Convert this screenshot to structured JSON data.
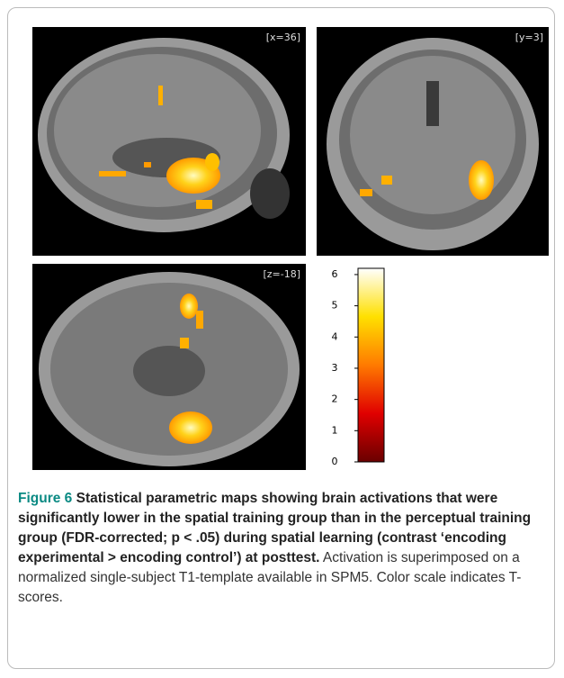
{
  "panels": [
    {
      "label": "[x=36]"
    },
    {
      "label": "[y=3]"
    },
    {
      "label": "[z=-18]"
    }
  ],
  "colorbar": {
    "ylim": [
      0,
      6.2
    ],
    "yticks": [
      0,
      1,
      2,
      3,
      4,
      5,
      6
    ]
  },
  "caption": {
    "figure_label": "Figure 6",
    "title": "Statistical parametric maps showing brain activations that were significantly lower in the spatial training group than in the perceptual training group (FDR-corrected; p < .05) during spatial learning (contrast ‘encoding experimental > encoding control’) at posttest.",
    "text": "Activation is superimposed on a normalized single-subject T1-template available in SPM5. Color scale indicates T-scores."
  }
}
